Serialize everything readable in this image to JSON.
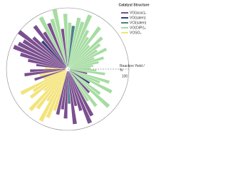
{
  "chart_data": {
    "type": "radial-bar",
    "rlabel": "Reaction Yield / %",
    "rlim": [
      0,
      100
    ],
    "rticks": [
      100
    ],
    "legend_title": "Catalyst Structure",
    "legend": "top-right",
    "series": [
      {
        "name": "VO(acac)₂",
        "color": "#7b4f8f",
        "values": [
          null,
          null,
          30,
          null,
          null,
          null,
          null,
          null,
          null,
          50,
          null,
          null,
          85,
          95,
          70,
          60,
          90,
          null,
          80,
          65,
          75,
          null,
          null,
          null,
          null,
          null,
          null,
          null,
          null,
          null,
          null,
          null,
          55,
          null,
          70,
          60,
          null,
          50,
          65,
          80,
          95,
          90,
          85,
          100,
          75,
          null,
          88,
          70,
          null,
          80,
          null,
          null,
          65,
          null,
          null,
          null,
          null,
          null,
          null,
          null,
          null,
          null,
          null,
          null,
          null,
          null,
          null,
          null,
          null,
          null,
          null,
          null
        ]
      },
      {
        "name": "VO(salen)",
        "color": "#3a3f75",
        "values": [
          null,
          null,
          null,
          null,
          null,
          null,
          40,
          null,
          null,
          null,
          null,
          null,
          null,
          null,
          null,
          null,
          null,
          null,
          null,
          null,
          null,
          null,
          null,
          null,
          null,
          null,
          null,
          null,
          null,
          null,
          null,
          null,
          null,
          null,
          null,
          null,
          null,
          null,
          null,
          null,
          null,
          null,
          null,
          null,
          null,
          60,
          null,
          null,
          null,
          null,
          null,
          null,
          null,
          null,
          null,
          null,
          null,
          null,
          null,
          null,
          null,
          null,
          null,
          null,
          null,
          null,
          null,
          null,
          null,
          null,
          null,
          null
        ]
      },
      {
        "name": "VCl(salen)",
        "color": "#4f7f8a",
        "values": [
          null,
          null,
          null,
          null,
          null,
          null,
          null,
          null,
          null,
          null,
          null,
          null,
          null,
          null,
          null,
          null,
          null,
          55,
          null,
          null,
          null,
          null,
          null,
          null,
          null,
          null,
          null,
          null,
          null,
          null,
          null,
          null,
          null,
          null,
          null,
          null,
          null,
          null,
          null,
          null,
          null,
          null,
          null,
          null,
          null,
          null,
          null,
          null,
          null,
          null,
          null,
          null,
          null,
          null,
          null,
          70,
          null,
          null,
          null,
          null,
          null,
          null,
          null,
          null,
          null,
          null,
          null,
          null,
          null,
          null,
          null,
          null
        ]
      },
      {
        "name": "VO(OiPr)₃",
        "color": "#a6dca2",
        "values": [
          45,
          60,
          null,
          70,
          55,
          80,
          null,
          65,
          90,
          null,
          75,
          60,
          null,
          null,
          null,
          null,
          null,
          null,
          null,
          null,
          null,
          null,
          null,
          null,
          null,
          null,
          null,
          null,
          null,
          null,
          null,
          null,
          null,
          null,
          null,
          null,
          null,
          null,
          null,
          null,
          null,
          null,
          null,
          null,
          null,
          null,
          null,
          null,
          95,
          null,
          85,
          100,
          null,
          90,
          75,
          null,
          85,
          80,
          95,
          70,
          60,
          85,
          50,
          75,
          65,
          55,
          70,
          45,
          60,
          50,
          40,
          35
        ]
      },
      {
        "name": "VOSO₄",
        "color": "#f3e47a",
        "values": [
          null,
          null,
          null,
          null,
          null,
          null,
          null,
          null,
          null,
          null,
          null,
          null,
          null,
          null,
          null,
          null,
          null,
          null,
          null,
          null,
          null,
          70,
          85,
          95,
          60,
          80,
          90,
          50,
          75,
          65,
          85,
          40,
          null,
          45,
          null,
          null,
          35,
          null,
          null,
          null,
          null,
          null,
          null,
          null,
          null,
          null,
          null,
          null,
          null,
          null,
          null,
          null,
          null,
          null,
          null,
          null,
          null,
          null,
          null,
          null,
          null,
          null,
          null,
          null,
          null,
          null,
          null,
          null,
          null,
          null,
          null,
          null
        ]
      }
    ]
  }
}
